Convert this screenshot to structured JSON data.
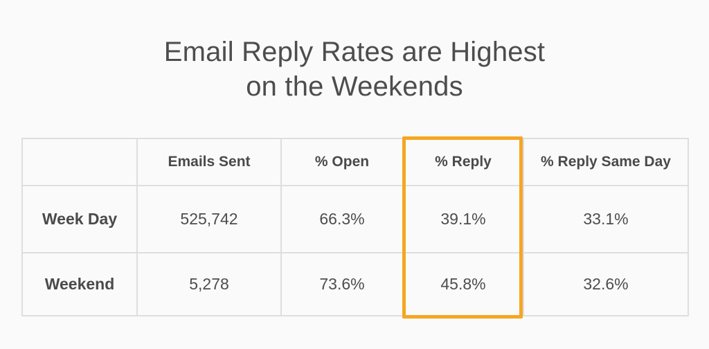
{
  "title": {
    "line1": "Email Reply Rates are Highest",
    "line2": "on the Weekends"
  },
  "colors": {
    "background": "#fafafa",
    "text": "#4a4a4a",
    "grid": "#dedede",
    "highlight": "#f5a623"
  },
  "chart_data": {
    "type": "table",
    "title": "Email Reply Rates are Highest on the Weekends",
    "columns": [
      "",
      "Emails Sent",
      "% Open",
      "% Reply",
      "% Reply Same Day"
    ],
    "rows": [
      {
        "label": "Week Day",
        "values": [
          "525,742",
          "66.3%",
          "39.1%",
          "33.1%"
        ]
      },
      {
        "label": "Weekend",
        "values": [
          "5,278",
          "73.6%",
          "45.8%",
          "32.6%"
        ]
      }
    ],
    "highlighted_column": "% Reply"
  }
}
